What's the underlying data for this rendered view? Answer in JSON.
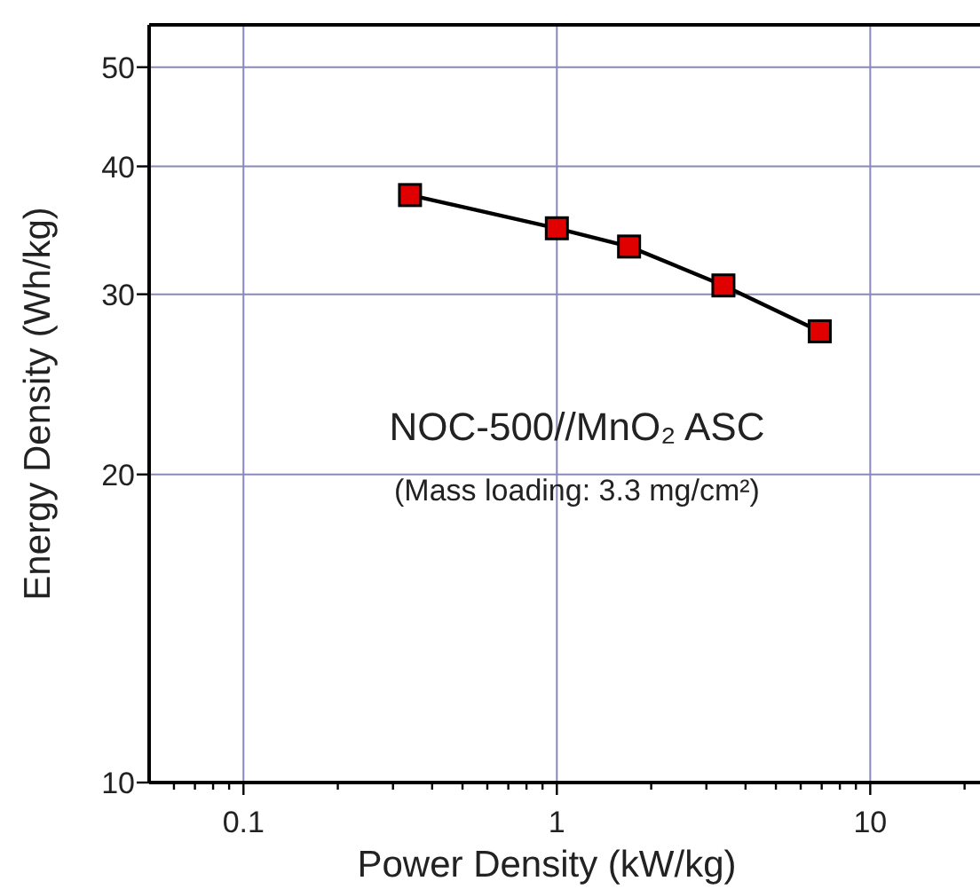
{
  "chart_data": {
    "type": "line",
    "xlabel": "Power Density (kW/kg)",
    "ylabel": "Energy Density (Wh/kg)",
    "log": "xy",
    "grid": true,
    "marker": "square",
    "line_style": "solid",
    "xlim": [
      0.05,
      22.4
    ],
    "ylim": [
      10,
      55
    ],
    "xticks": [
      {
        "value": 0.06,
        "label": null
      },
      {
        "value": 0.07,
        "label": null
      },
      {
        "value": 0.08,
        "label": null
      },
      {
        "value": 0.09,
        "label": null
      },
      0.1,
      {
        "value": 0.2,
        "label": null
      },
      {
        "value": 0.3,
        "label": null
      },
      {
        "value": 0.4,
        "label": null
      },
      {
        "value": 0.5,
        "label": null
      },
      {
        "value": 0.6,
        "label": null
      },
      {
        "value": 0.7,
        "label": null
      },
      {
        "value": 0.8,
        "label": null
      },
      {
        "value": 0.9,
        "label": null
      },
      1,
      {
        "value": 2,
        "label": null
      },
      {
        "value": 3,
        "label": null
      },
      {
        "value": 4,
        "label": null
      },
      {
        "value": 5,
        "label": null
      },
      {
        "value": 6,
        "label": null
      },
      {
        "value": 7,
        "label": null
      },
      {
        "value": 8,
        "label": null
      },
      {
        "value": 9,
        "label": null
      },
      10,
      {
        "value": 20,
        "label": null
      }
    ],
    "yticks": [
      10,
      20,
      30,
      40,
      50
    ],
    "series": [
      {
        "color": "#e00000",
        "x": [
          0.34,
          1.0,
          1.7,
          3.4,
          6.9
        ],
        "values": [
          37.5,
          34.8,
          33.4,
          30.6,
          27.6
        ]
      }
    ],
    "annotations": [
      "NOC-500//MnO₂ ASC",
      "(Mass loading: 3.3 mg/cm²)"
    ]
  }
}
